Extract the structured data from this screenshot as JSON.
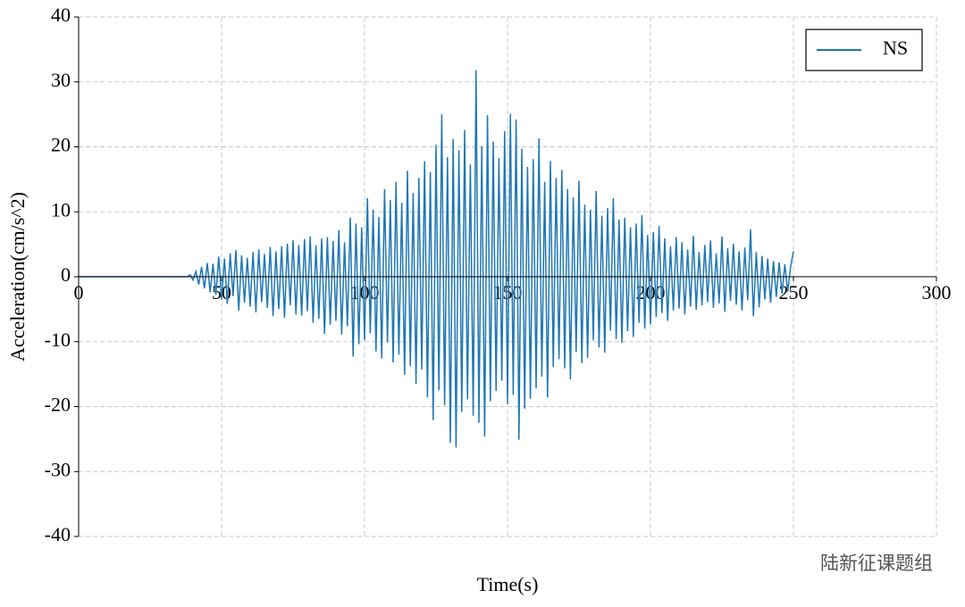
{
  "chart_data": {
    "type": "line",
    "xlabel": "Time(s)",
    "ylabel": "Acceleration(cm/s^2)",
    "xlim": [
      0,
      300
    ],
    "xticks": [
      0,
      50,
      100,
      150,
      200,
      250,
      300
    ],
    "ylim": [
      -40,
      40
    ],
    "yticks": [
      -40,
      -30,
      -20,
      -10,
      0,
      10,
      20,
      30,
      40
    ],
    "grid": true,
    "legend": "upper right",
    "watermark": "陆新征课题组",
    "x": [
      0,
      38,
      39,
      40,
      41,
      42,
      43,
      44,
      45,
      46,
      47,
      48,
      49,
      50,
      51,
      52,
      53,
      54,
      55,
      56,
      57,
      58,
      59,
      60,
      61,
      62,
      63,
      64,
      65,
      66,
      67,
      68,
      69,
      70,
      71,
      72,
      73,
      74,
      75,
      76,
      77,
      78,
      79,
      80,
      81,
      82,
      83,
      84,
      85,
      86,
      87,
      88,
      89,
      90,
      91,
      92,
      93,
      94,
      95,
      96,
      97,
      98,
      99,
      100,
      101,
      102,
      103,
      104,
      105,
      106,
      107,
      108,
      109,
      110,
      111,
      112,
      113,
      114,
      115,
      116,
      117,
      118,
      119,
      120,
      121,
      122,
      123,
      124,
      125,
      126,
      127,
      128,
      129,
      130,
      131,
      132,
      133,
      134,
      135,
      136,
      137,
      138,
      139,
      140,
      141,
      142,
      143,
      144,
      145,
      146,
      147,
      148,
      149,
      150,
      151,
      152,
      153,
      154,
      155,
      156,
      157,
      158,
      159,
      160,
      161,
      162,
      163,
      164,
      165,
      166,
      167,
      168,
      169,
      170,
      171,
      172,
      173,
      174,
      175,
      176,
      177,
      178,
      179,
      180,
      181,
      182,
      183,
      184,
      185,
      186,
      187,
      188,
      189,
      190,
      191,
      192,
      193,
      194,
      195,
      196,
      197,
      198,
      199,
      200,
      201,
      202,
      203,
      204,
      205,
      206,
      207,
      208,
      209,
      210,
      211,
      212,
      213,
      214,
      215,
      216,
      217,
      218,
      219,
      220,
      221,
      222,
      223,
      224,
      225,
      226,
      227,
      228,
      229,
      230,
      231,
      232,
      233,
      234,
      235,
      236,
      237,
      238,
      239,
      240,
      241,
      242,
      243,
      244,
      245,
      246,
      247,
      248,
      249,
      250
    ],
    "series": [
      {
        "name": "NS",
        "color": "#1f77b4",
        "values": [
          0,
          0,
          0.3,
          -0.5,
          0.8,
          -1.2,
          1.5,
          -1.8,
          2.1,
          -2.4,
          2.0,
          -2.8,
          3.1,
          -3.5,
          2.8,
          -4.2,
          3.6,
          -3.0,
          4.1,
          -5.2,
          3.3,
          -4.0,
          2.9,
          -4.6,
          3.8,
          -5.5,
          4.2,
          -3.9,
          3.5,
          -4.8,
          4.6,
          -6.1,
          3.9,
          -5.0,
          4.7,
          -6.3,
          5.1,
          -4.4,
          5.6,
          -5.8,
          4.9,
          -6.0,
          5.8,
          -5.3,
          6.2,
          -7.1,
          4.8,
          -6.5,
          5.9,
          -8.8,
          6.1,
          -7.4,
          5.5,
          -6.8,
          7.2,
          -8.9,
          5.3,
          -7.6,
          9.1,
          -12.3,
          8.2,
          -10.4,
          7.6,
          -9.8,
          12.1,
          -8.7,
          10.3,
          -11.5,
          9.2,
          -12.6,
          13.5,
          -10.1,
          11.8,
          -13.2,
          14.6,
          -12.0,
          11.4,
          -15.1,
          16.3,
          -13.8,
          12.9,
          -16.5,
          15.2,
          -14.3,
          17.8,
          -18.6,
          16.1,
          -22.1,
          20.3,
          -17.5,
          25.0,
          -19.8,
          18.4,
          -25.6,
          21.2,
          -26.3,
          19.5,
          -20.8,
          22.6,
          -18.9,
          17.3,
          -21.4,
          31.8,
          -22.5,
          20.1,
          -24.6,
          24.9,
          -19.2,
          20.8,
          -17.6,
          18.3,
          -16.0,
          22.4,
          -19.6,
          25.1,
          -18.2,
          24.2,
          -25.1,
          19.7,
          -20.3,
          16.9,
          -18.8,
          18.1,
          -17.2,
          21.3,
          -15.4,
          14.6,
          -18.6,
          17.8,
          -13.9,
          15.2,
          -12.7,
          16.4,
          -14.1,
          13.5,
          -15.8,
          12.2,
          -11.6,
          14.8,
          -13.3,
          11.1,
          -12.5,
          10.3,
          -9.8,
          13.2,
          -10.9,
          9.4,
          -11.7,
          10.6,
          -8.3,
          12.1,
          -9.6,
          8.8,
          -10.2,
          9.1,
          -8.4,
          7.6,
          -9.3,
          8.2,
          -7.1,
          9.5,
          -8.0,
          6.4,
          -7.3,
          6.9,
          -6.2,
          7.8,
          -5.6,
          5.9,
          -6.8,
          4.7,
          -5.2,
          6.1,
          -4.9,
          5.3,
          -5.8,
          4.2,
          -4.6,
          6.3,
          -5.1,
          3.8,
          -4.4,
          4.9,
          -3.9,
          5.6,
          -4.8,
          3.6,
          -4.1,
          6.2,
          -5.4,
          4.4,
          -3.7,
          5.1,
          -4.3,
          3.9,
          -5.2,
          4.5,
          -3.6,
          7.3,
          -6.1,
          3.8,
          -4.7,
          3.2,
          -3.5,
          2.8,
          -4.0,
          2.4,
          -3.1,
          2.2,
          -2.6,
          1.9,
          -2.3,
          1.5,
          3.9
        ]
      }
    ]
  }
}
